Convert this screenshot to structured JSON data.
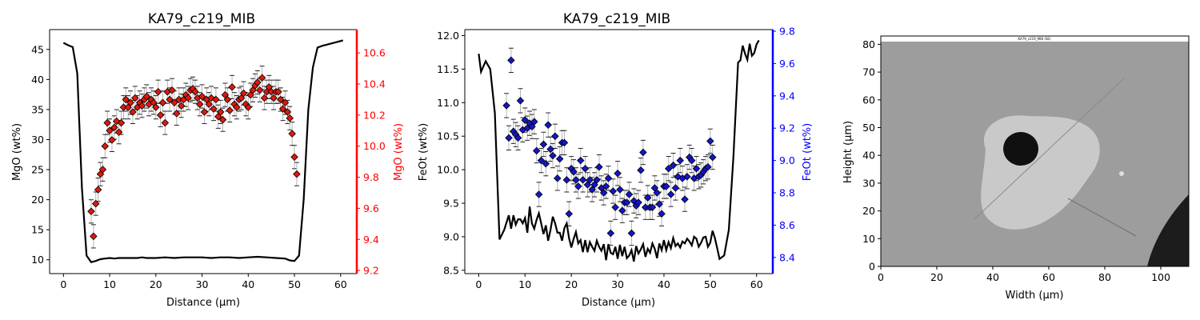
{
  "chart_data": [
    {
      "type": "line",
      "title": "KA79_c219_MIB",
      "xlabel": "Distance (µm)",
      "ylabel": "MgO (wt%)",
      "y2label": "MgO (wt%)",
      "xlim": [
        -3,
        63.5
      ],
      "ylim": [
        7.7,
        48.3
      ],
      "y2lim": [
        9.18,
        10.75
      ],
      "xticks": [
        "0",
        "10",
        "20",
        "30",
        "40",
        "50",
        "60"
      ],
      "yticks": [
        "10",
        "15",
        "20",
        "25",
        "30",
        "35",
        "40",
        "45"
      ],
      "y2ticks": [
        "9.2",
        "9.4",
        "9.6",
        "9.8",
        "10.0",
        "10.2",
        "10.4",
        "10.6"
      ],
      "secondary_color": "#ff0000",
      "series": [
        {
          "role": "profile-line",
          "color": "#000000",
          "x": [
            0,
            1,
            2,
            3,
            4,
            5,
            6,
            7,
            8,
            9,
            10,
            11,
            12,
            13,
            14,
            15,
            16,
            17,
            18,
            19,
            20,
            22,
            24,
            26,
            28,
            30,
            32,
            34,
            36,
            38,
            40,
            42,
            44,
            46,
            48,
            49,
            50,
            51,
            52,
            53,
            54,
            55,
            56,
            57,
            58,
            59,
            60.5
          ],
          "y": [
            46.1,
            45.7,
            45.4,
            41,
            22,
            10.7,
            9.6,
            9.8,
            10.1,
            10.2,
            10.3,
            10.2,
            10.3,
            10.3,
            10.3,
            10.3,
            10.3,
            10.4,
            10.3,
            10.3,
            10.3,
            10.4,
            10.3,
            10.4,
            10.4,
            10.4,
            10.3,
            10.4,
            10.4,
            10.3,
            10.4,
            10.5,
            10.4,
            10.3,
            10.2,
            9.9,
            9.8,
            10.7,
            20,
            35,
            42,
            45.3,
            45.6,
            45.8,
            46,
            46.2,
            46.5
          ]
        },
        {
          "role": "points",
          "axis": "secondary",
          "color": "#e0180c",
          "edge_color": "#000000",
          "marker": "diamond",
          "x": [
            6,
            6.5,
            7,
            7.5,
            8,
            8.5,
            9,
            9.5,
            10,
            10.5,
            11,
            11.5,
            12,
            12.5,
            13,
            13.5,
            14,
            14.5,
            15,
            15.5,
            16,
            16.5,
            17,
            17.5,
            18,
            18.5,
            19,
            19.5,
            20,
            20.5,
            21,
            21.5,
            22,
            22.5,
            23,
            23.5,
            24,
            24.5,
            25,
            25.5,
            26,
            26.5,
            27,
            27.5,
            28,
            28.5,
            29,
            29.5,
            30,
            30.5,
            31,
            31.5,
            32,
            32.5,
            33,
            33.5,
            34,
            34.5,
            35,
            35.5,
            36,
            36.5,
            37,
            37.5,
            38,
            38.5,
            39,
            39.5,
            40,
            40.5,
            41,
            41.5,
            42,
            42.5,
            43,
            43.5,
            44,
            44.5,
            45,
            45.5,
            46,
            46.5,
            47,
            47.5,
            48,
            48.5,
            49,
            49.5,
            50,
            50.5
          ],
          "y": [
            9.58,
            9.42,
            9.63,
            9.72,
            9.82,
            9.85,
            10.0,
            10.15,
            10.1,
            10.04,
            10.12,
            10.16,
            10.09,
            10.15,
            10.25,
            10.3,
            10.25,
            10.28,
            10.22,
            10.31,
            10.25,
            10.28,
            10.26,
            10.3,
            10.32,
            10.27,
            10.3,
            10.28,
            10.25,
            10.35,
            10.2,
            10.28,
            10.15,
            10.35,
            10.3,
            10.36,
            10.28,
            10.21,
            10.3,
            10.26,
            10.3,
            10.33,
            10.31,
            10.36,
            10.37,
            10.35,
            10.31,
            10.27,
            10.32,
            10.22,
            10.3,
            10.27,
            10.31,
            10.24,
            10.3,
            10.19,
            10.22,
            10.17,
            10.33,
            10.3,
            10.23,
            10.38,
            10.27,
            10.25,
            10.3,
            10.31,
            10.34,
            10.27,
            10.25,
            10.33,
            10.36,
            10.39,
            10.41,
            10.36,
            10.44,
            10.31,
            10.35,
            10.38,
            10.35,
            10.31,
            10.35,
            10.35,
            10.3,
            10.24,
            10.28,
            10.22,
            10.18,
            10.08,
            9.93,
            9.82
          ]
        }
      ]
    },
    {
      "type": "line",
      "title": "KA79_c219_MIB",
      "xlabel": "Distance (µm)",
      "ylabel": "FeOt (wt%)",
      "y2label": "FeOt (wt%)",
      "xlim": [
        -3,
        63.5
      ],
      "ylim": [
        8.45,
        12.09
      ],
      "y2lim": [
        8.3,
        9.81
      ],
      "xticks": [
        "0",
        "10",
        "20",
        "30",
        "40",
        "50",
        "60"
      ],
      "yticks": [
        "8.5",
        "9.0",
        "9.5",
        "10.0",
        "10.5",
        "11.0",
        "11.5",
        "12.0"
      ],
      "y2ticks": [
        "8.4",
        "8.6",
        "8.8",
        "9.0",
        "9.2",
        "9.4",
        "9.6",
        "9.8"
      ],
      "secondary_color": "#0000ff",
      "series": [
        {
          "role": "profile-line",
          "color": "#000000",
          "x": [
            0,
            0.5,
            1.5,
            2.5,
            3.5,
            4.5,
            5.5,
            6.5,
            7,
            7.5,
            8,
            8.5,
            9,
            9.5,
            10,
            10.5,
            11,
            11.5,
            12,
            12.5,
            13,
            13.5,
            14,
            14.5,
            15,
            15.5,
            16,
            16.5,
            17,
            17.5,
            18,
            18.5,
            19,
            19.5,
            20,
            20.5,
            21,
            21.5,
            22,
            22.5,
            23,
            23.5,
            24,
            24.5,
            25,
            25.5,
            26,
            26.5,
            27,
            27.5,
            28,
            28.5,
            29,
            29.5,
            30,
            30.5,
            31,
            31.5,
            32,
            32.5,
            33,
            33.5,
            34,
            34.5,
            35,
            35.5,
            36,
            36.5,
            37,
            37.5,
            38,
            38.5,
            39,
            39.5,
            40,
            40.5,
            41,
            41.5,
            42,
            42.5,
            43,
            43.5,
            44,
            44.5,
            45,
            45.5,
            46,
            46.5,
            47,
            47.5,
            48,
            48.5,
            49,
            49.5,
            50,
            50.5,
            51,
            51.5,
            52,
            53,
            54,
            55,
            56,
            56.5,
            57,
            57.5,
            58,
            58.5,
            59,
            59.5,
            60,
            60.5
          ],
          "y": [
            11.73,
            11.46,
            11.62,
            11.5,
            10.84,
            8.96,
            9.1,
            9.32,
            9.12,
            9.32,
            9.18,
            9.26,
            9.26,
            9.2,
            9.28,
            9.06,
            9.45,
            9.2,
            9.12,
            9.25,
            9.35,
            9.2,
            9.04,
            9.17,
            8.94,
            9.1,
            9.3,
            9.2,
            9.06,
            9.06,
            8.94,
            9.13,
            9.2,
            8.98,
            8.84,
            8.97,
            9.07,
            8.9,
            8.95,
            8.77,
            8.95,
            8.77,
            8.92,
            8.85,
            8.79,
            8.94,
            8.85,
            8.79,
            8.89,
            8.65,
            8.89,
            8.76,
            8.74,
            8.85,
            8.67,
            8.88,
            8.71,
            8.85,
            8.68,
            8.72,
            8.8,
            8.63,
            8.86,
            8.75,
            8.81,
            8.89,
            8.7,
            8.82,
            8.76,
            8.9,
            8.82,
            8.68,
            8.9,
            8.8,
            8.95,
            8.8,
            8.92,
            8.83,
            8.98,
            8.86,
            8.9,
            8.84,
            8.93,
            8.9,
            8.97,
            8.93,
            8.87,
            9.0,
            8.97,
            8.85,
            8.91,
            8.99,
            9.0,
            8.85,
            8.91,
            9.09,
            8.98,
            8.83,
            8.67,
            8.72,
            9.1,
            10.2,
            11.6,
            11.63,
            11.85,
            11.73,
            11.64,
            11.88,
            11.7,
            11.74,
            11.87,
            11.93
          ]
        },
        {
          "role": "points",
          "axis": "secondary",
          "color": "#1515c8",
          "edge_color": "#000000",
          "marker": "diamond",
          "x": [
            6,
            6.5,
            7,
            7.5,
            8,
            8.5,
            9,
            9.5,
            10,
            10.5,
            11,
            11.5,
            12,
            12.5,
            13,
            13.5,
            14,
            14.5,
            15,
            15.5,
            16,
            16.5,
            17,
            17.5,
            18,
            18.5,
            19,
            19.5,
            20,
            20.5,
            21,
            21.5,
            22,
            22.5,
            23,
            23.5,
            24,
            24.5,
            25,
            25.5,
            26,
            26.5,
            27,
            27.5,
            28,
            28.5,
            29,
            29.5,
            30,
            30.5,
            31,
            31.5,
            32,
            32.5,
            33,
            33.5,
            34,
            34.5,
            35,
            35.5,
            36,
            36.5,
            37,
            37.5,
            38,
            38.5,
            39,
            39.5,
            40,
            40.5,
            41,
            41.5,
            42,
            42.5,
            43,
            43.5,
            44,
            44.5,
            45,
            45.5,
            46,
            46.5,
            47,
            47.5,
            48,
            48.5,
            49,
            49.5,
            50,
            50.5
          ],
          "y": [
            9.34,
            9.14,
            9.62,
            9.18,
            9.16,
            9.14,
            9.37,
            9.19,
            9.25,
            9.2,
            9.23,
            9.21,
            9.24,
            9.06,
            8.79,
            9.0,
            9.1,
            8.98,
            9.22,
            9.07,
            9.03,
            9.15,
            8.89,
            9.01,
            9.11,
            9.11,
            8.88,
            8.67,
            8.95,
            8.93,
            8.88,
            8.84,
            9.0,
            8.88,
            8.95,
            8.85,
            8.88,
            8.82,
            8.85,
            8.88,
            8.96,
            8.83,
            8.8,
            8.84,
            8.89,
            8.55,
            8.81,
            8.71,
            8.92,
            8.82,
            8.69,
            8.74,
            8.74,
            8.79,
            8.55,
            8.75,
            8.72,
            8.74,
            8.94,
            9.05,
            8.71,
            8.77,
            8.71,
            8.71,
            8.83,
            8.8,
            8.73,
            8.67,
            8.84,
            8.84,
            8.95,
            8.79,
            8.97,
            8.83,
            8.9,
            9.0,
            8.89,
            8.76,
            8.9,
            9.02,
            9.0,
            8.89,
            8.95,
            8.9,
            8.91,
            8.93,
            8.95,
            8.96,
            9.12,
            9.02
          ]
        }
      ]
    },
    {
      "type": "image",
      "xlabel": "Width (µm)",
      "ylabel": "Height (µm)",
      "xlim": [
        0,
        110
      ],
      "ylim": [
        0,
        83
      ],
      "xticks": [
        "0",
        "20",
        "40",
        "60",
        "80",
        "100"
      ],
      "yticks": [
        "0",
        "10",
        "20",
        "30",
        "40",
        "50",
        "60",
        "70",
        "80"
      ],
      "banner_text": "KA79_c219_MIB (SE)"
    }
  ]
}
